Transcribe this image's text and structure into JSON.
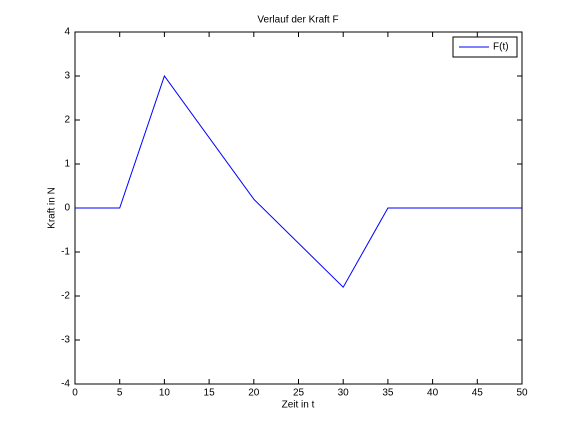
{
  "chart_data": {
    "type": "line",
    "title": "Verlauf der Kraft F",
    "x_label": "Zeit in t",
    "y_label": "Kraft in N",
    "x": [
      0,
      5,
      10,
      20,
      30,
      35,
      50
    ],
    "series": [
      {
        "name": "F(t)",
        "color": "#0000ff",
        "values": [
          0,
          0,
          3,
          0.2,
          -1.8,
          0,
          0
        ]
      }
    ],
    "xlim": [
      0,
      50
    ],
    "xticks": [
      0,
      5,
      10,
      15,
      20,
      25,
      30,
      35,
      40,
      45,
      50
    ],
    "ylim": [
      -4,
      4
    ],
    "yticks": [
      -4,
      -3,
      -2,
      -1,
      0,
      1,
      2,
      3,
      4
    ],
    "grid": false,
    "legend": "upper right"
  }
}
